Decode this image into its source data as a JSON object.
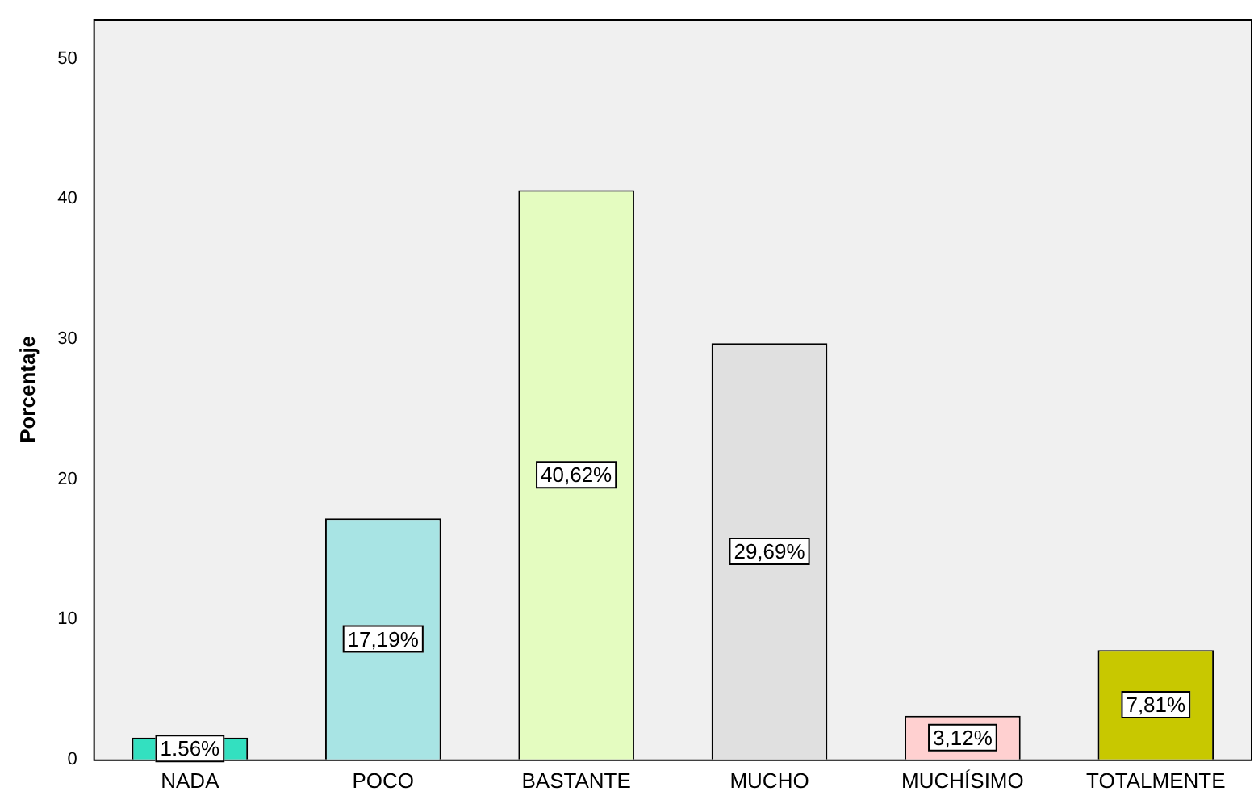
{
  "chart_data": {
    "type": "bar",
    "ylabel": "Porcentaje",
    "categories": [
      "NADA",
      "POCO",
      "BASTANTE",
      "MUCHO",
      "MUCHÍSIMO",
      "TOTALMENTE"
    ],
    "values": [
      1.56,
      17.19,
      40.62,
      29.69,
      3.12,
      7.81
    ],
    "colors": [
      "#33e0c0",
      "#a8e4e4",
      "#e4fcc0",
      "#e0e0e0",
      "#ffd0d0",
      "#c8c800"
    ],
    "value_labels": [
      "1.56%",
      "17,19%",
      "40,62%",
      "29,69%",
      "3,12%",
      "7,81%"
    ],
    "ylim": [
      0,
      52.8
    ],
    "yticks": [
      0,
      10,
      20,
      30,
      40,
      50
    ],
    "grid": false,
    "legend": false
  }
}
